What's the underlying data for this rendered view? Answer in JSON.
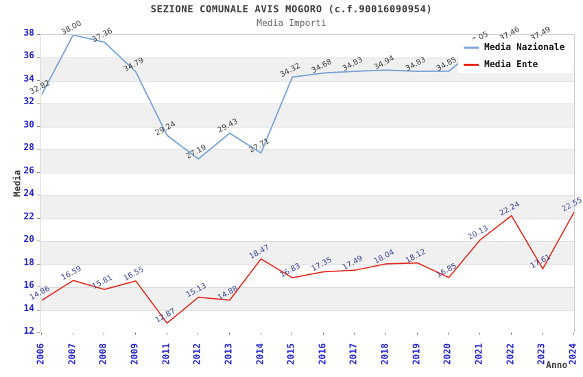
{
  "chart_data": {
    "type": "line",
    "title": "SEZIONE COMUNALE AVIS MOGORO (c.f.90016090954)",
    "subtitle": "Media Importi",
    "xlabel": "Anno",
    "ylabel": "Media",
    "ylim": [
      12,
      38
    ],
    "ytick_step": 2,
    "grid": "horizontal",
    "plot_bands_alternating": [
      "#ffffff",
      "#f0f0f0"
    ],
    "axis_tick_color": "#2525cc",
    "legend_position": "top-right-overlay",
    "categories": [
      "2006",
      "2007",
      "2008",
      "2009",
      "2011",
      "2012",
      "2013",
      "2014",
      "2015",
      "2016",
      "2017",
      "2018",
      "2019",
      "2020",
      "2021",
      "2022",
      "2023",
      "2024"
    ],
    "series": [
      {
        "name": "Media Nazionale",
        "color": "#7aa5d6",
        "label_color": "#3c3c3c",
        "values": [
          32.82,
          38.0,
          37.36,
          34.79,
          29.24,
          27.19,
          29.43,
          27.71,
          34.32,
          34.68,
          34.83,
          34.94,
          34.83,
          34.85,
          37.05,
          37.46,
          37.49,
          null
        ]
      },
      {
        "name": "Media Ente",
        "color": "#e8261a",
        "label_color": "#3b4399",
        "values": [
          14.86,
          16.59,
          15.81,
          16.55,
          12.87,
          15.13,
          14.88,
          18.47,
          16.83,
          17.35,
          17.49,
          18.04,
          18.12,
          16.85,
          20.13,
          22.24,
          17.61,
          22.55
        ]
      }
    ]
  }
}
